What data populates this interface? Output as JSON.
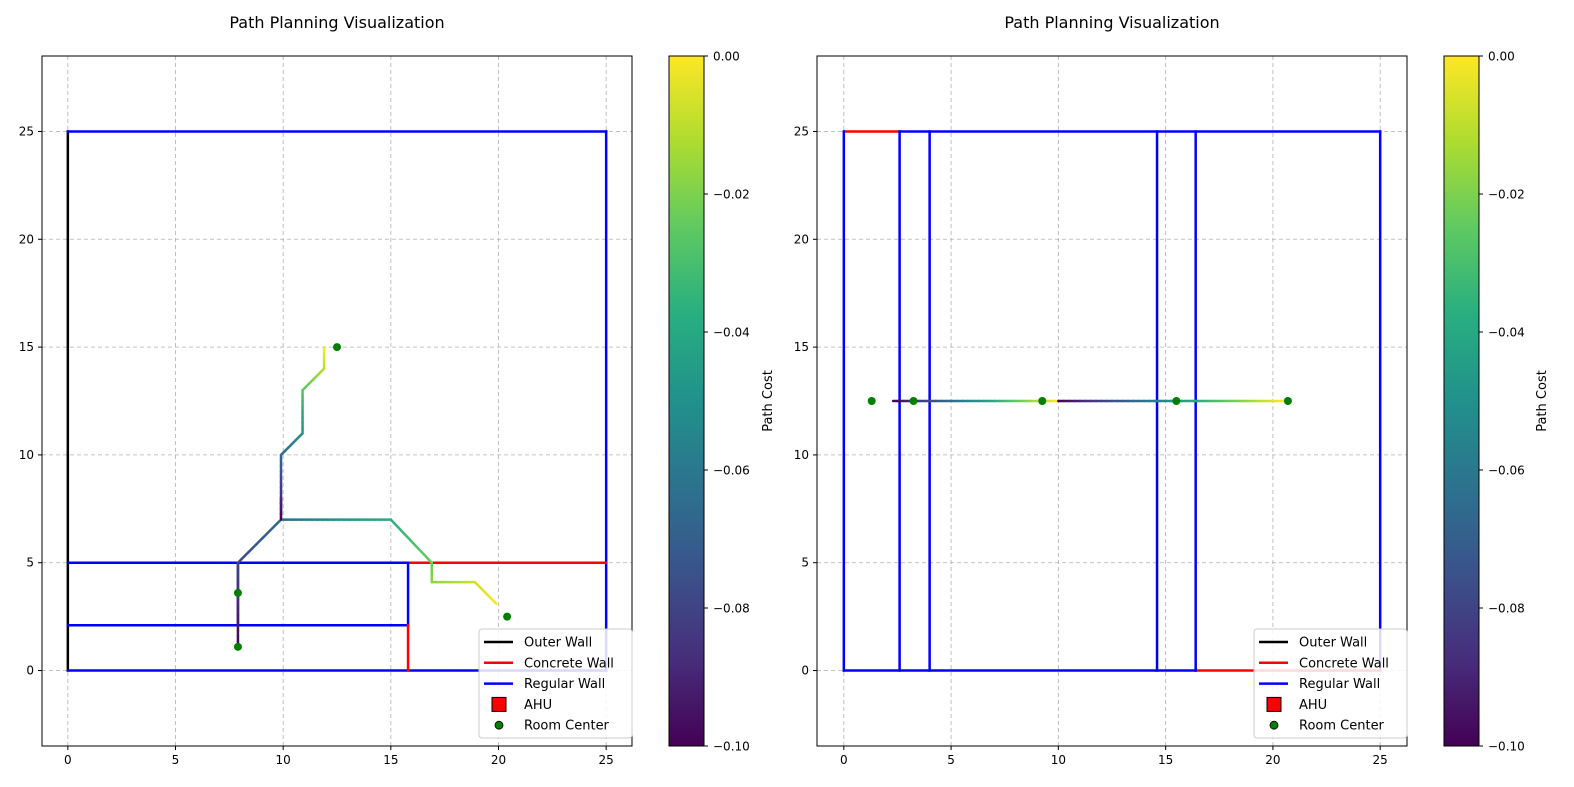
{
  "chart_data": [
    {
      "type": "line",
      "title": "Path Planning Visualization",
      "xlim": [
        -1.2,
        26.2
      ],
      "ylim": [
        -3.5,
        28.5
      ],
      "xticks": [
        0,
        5,
        10,
        15,
        20,
        25
      ],
      "yticks": [
        0,
        5,
        10,
        15,
        20,
        25
      ],
      "grid": true,
      "legend_position": "lower-right",
      "legend": [
        {
          "label": "Outer Wall",
          "kind": "line",
          "color": "#000000"
        },
        {
          "label": "Concrete Wall",
          "kind": "line",
          "color": "#ff0000"
        },
        {
          "label": "Regular Wall",
          "kind": "line",
          "color": "#0000ff"
        },
        {
          "label": "AHU",
          "kind": "square",
          "color": "#ff0000"
        },
        {
          "label": "Room Center",
          "kind": "circle",
          "color": "#008000"
        }
      ],
      "walls": [
        {
          "type": "outer",
          "points": [
            [
              0,
              0
            ],
            [
              0,
              25
            ]
          ]
        },
        {
          "type": "regular",
          "points": [
            [
              0,
              25
            ],
            [
              25,
              25
            ]
          ]
        },
        {
          "type": "regular",
          "points": [
            [
              25,
              25
            ],
            [
              25,
              0
            ]
          ]
        },
        {
          "type": "regular",
          "points": [
            [
              0,
              0
            ],
            [
              25,
              0
            ]
          ]
        },
        {
          "type": "regular",
          "points": [
            [
              0,
              5
            ],
            [
              15.8,
              5
            ]
          ]
        },
        {
          "type": "concrete",
          "points": [
            [
              15.8,
              5
            ],
            [
              25,
              5
            ]
          ]
        },
        {
          "type": "regular",
          "points": [
            [
              0,
              2.1
            ],
            [
              15.8,
              2.1
            ]
          ]
        },
        {
          "type": "regular",
          "points": [
            [
              15.8,
              5
            ],
            [
              15.8,
              2.1
            ]
          ]
        },
        {
          "type": "concrete",
          "points": [
            [
              15.8,
              2.1
            ],
            [
              15.8,
              0
            ]
          ]
        },
        {
          "type": "regular",
          "points": [
            [
              7.9,
              5
            ],
            [
              7.9,
              2.1
            ]
          ]
        }
      ],
      "paths": [
        [
          [
            7.9,
            1.1
          ],
          [
            7.9,
            3.6
          ],
          [
            7.9,
            5
          ],
          [
            9.9,
            7
          ],
          [
            15,
            7
          ],
          [
            16.9,
            5
          ],
          [
            16.9,
            4.1
          ],
          [
            18.9,
            4.1
          ],
          [
            19.9,
            3.1
          ]
        ],
        [
          [
            9.9,
            8
          ],
          [
            9.9,
            7
          ]
        ],
        [
          [
            9.9,
            7
          ],
          [
            9.9,
            10
          ],
          [
            10.9,
            11
          ],
          [
            10.9,
            13
          ],
          [
            11.9,
            14
          ],
          [
            11.9,
            15
          ]
        ]
      ],
      "room_centers": [
        [
          7.9,
          1.1
        ],
        [
          7.9,
          3.6
        ],
        [
          12.5,
          15
        ],
        [
          20.4,
          2.5
        ]
      ],
      "colorbar": {
        "label": "Path Cost",
        "min": -0.1,
        "max": 0.0,
        "ticks": [
          "0.00",
          "−0.02",
          "−0.04",
          "−0.06",
          "−0.08",
          "−0.10"
        ],
        "colormap": "viridis"
      }
    },
    {
      "type": "line",
      "title": "Path Planning Visualization",
      "xlim": [
        -1.25,
        26.25
      ],
      "ylim": [
        -3.5,
        28.5
      ],
      "xticks": [
        0,
        5,
        10,
        15,
        20,
        25
      ],
      "yticks": [
        0,
        5,
        10,
        15,
        20,
        25
      ],
      "grid": true,
      "legend_position": "lower-right",
      "legend": [
        {
          "label": "Outer Wall",
          "kind": "line",
          "color": "#000000"
        },
        {
          "label": "Concrete Wall",
          "kind": "line",
          "color": "#ff0000"
        },
        {
          "label": "Regular Wall",
          "kind": "line",
          "color": "#0000ff"
        },
        {
          "label": "AHU",
          "kind": "square",
          "color": "#ff0000"
        },
        {
          "label": "Room Center",
          "kind": "circle",
          "color": "#008000"
        }
      ],
      "walls": [
        {
          "type": "concrete",
          "points": [
            [
              0,
              25
            ],
            [
              2.6,
              25
            ]
          ]
        },
        {
          "type": "regular",
          "points": [
            [
              2.6,
              25
            ],
            [
              25,
              25
            ]
          ]
        },
        {
          "type": "regular",
          "points": [
            [
              0,
              0
            ],
            [
              0,
              25
            ]
          ]
        },
        {
          "type": "regular",
          "points": [
            [
              25,
              25
            ],
            [
              25,
              0
            ]
          ]
        },
        {
          "type": "regular",
          "points": [
            [
              0,
              0
            ],
            [
              16.4,
              0
            ]
          ]
        },
        {
          "type": "concrete",
          "points": [
            [
              16.4,
              0
            ],
            [
              25,
              0
            ]
          ]
        },
        {
          "type": "regular",
          "points": [
            [
              2.6,
              0
            ],
            [
              2.6,
              25
            ]
          ]
        },
        {
          "type": "regular",
          "points": [
            [
              4,
              0
            ],
            [
              4,
              25
            ]
          ]
        },
        {
          "type": "regular",
          "points": [
            [
              14.6,
              0
            ],
            [
              14.6,
              25
            ]
          ]
        },
        {
          "type": "regular",
          "points": [
            [
              16.4,
              0
            ],
            [
              16.4,
              25
            ]
          ]
        }
      ],
      "paths": [
        [
          [
            2.3,
            12.5
          ],
          [
            10,
            12.5
          ]
        ],
        [
          [
            10,
            12.5
          ],
          [
            20.5,
            12.5
          ]
        ]
      ],
      "room_centers": [
        [
          1.3,
          12.5
        ],
        [
          3.25,
          12.5
        ],
        [
          9.25,
          12.5
        ],
        [
          15.5,
          12.5
        ],
        [
          20.7,
          12.5
        ]
      ],
      "colorbar": {
        "label": "Path Cost",
        "min": -0.1,
        "max": 0.0,
        "ticks": [
          "0.00",
          "−0.02",
          "−0.04",
          "−0.06",
          "−0.08",
          "−0.10"
        ],
        "colormap": "viridis"
      }
    }
  ]
}
